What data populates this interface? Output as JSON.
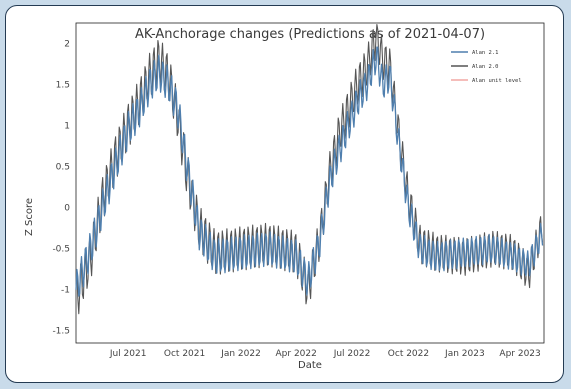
{
  "chart_data": {
    "type": "line",
    "title": "AK-Anchorage changes (Predictions as of 2021-04-07)",
    "xlabel": "Date",
    "ylabel": "Z Score",
    "x_ticks": [
      "Jul 2021",
      "Oct 2021",
      "Jan 2022",
      "Apr 2022",
      "Jul 2022",
      "Oct 2022",
      "Jan 2023",
      "Apr 2023"
    ],
    "y_ticks": [
      "-1.5",
      "-1",
      "-0.5",
      "0",
      "0.5",
      "1",
      "1.5",
      "2"
    ],
    "ylim": [
      -1.65,
      2.25
    ],
    "xlim": [
      "2021-04-07",
      "2023-05-10"
    ],
    "legend_position": "top-right",
    "grid": false,
    "series": [
      {
        "name": "Alan 2.1",
        "color": "#4f7fae",
        "x": [
          "2021-04-07",
          "2021-05-01",
          "2021-05-20",
          "2021-06-10",
          "2021-07-01",
          "2021-07-20",
          "2021-08-05",
          "2021-08-20",
          "2021-09-05",
          "2021-09-20",
          "2021-10-05",
          "2021-10-25",
          "2021-11-20",
          "2022-01-01",
          "2022-02-15",
          "2022-04-01",
          "2022-04-20",
          "2022-05-10",
          "2022-05-25",
          "2022-06-10",
          "2022-06-25",
          "2022-07-10",
          "2022-07-25",
          "2022-08-10",
          "2022-08-20",
          "2022-09-01",
          "2022-09-15",
          "2022-10-01",
          "2022-10-20",
          "2022-11-15",
          "2023-01-01",
          "2023-02-15",
          "2023-03-20",
          "2023-04-15",
          "2023-05-08"
        ],
        "values": [
          -1.0,
          -0.5,
          0.0,
          0.5,
          0.95,
          1.2,
          1.5,
          1.65,
          1.5,
          1.2,
          0.5,
          -0.3,
          -0.6,
          -0.55,
          -0.5,
          -0.6,
          -0.9,
          -0.4,
          0.3,
          0.7,
          1.0,
          1.3,
          1.5,
          1.85,
          1.5,
          1.6,
          0.8,
          0.0,
          -0.5,
          -0.6,
          -0.55,
          -0.5,
          -0.6,
          -0.7,
          -0.3
        ]
      },
      {
        "name": "Alan 2.0",
        "color": "#555555",
        "x": [
          "2021-04-07",
          "2021-05-01",
          "2021-05-20",
          "2021-06-10",
          "2021-07-01",
          "2021-07-20",
          "2021-08-05",
          "2021-08-20",
          "2021-09-05",
          "2021-09-20",
          "2021-10-05",
          "2021-10-25",
          "2021-11-20",
          "2022-01-01",
          "2022-02-15",
          "2022-04-01",
          "2022-04-20",
          "2022-05-10",
          "2022-05-25",
          "2022-06-10",
          "2022-06-25",
          "2022-07-10",
          "2022-07-25",
          "2022-08-10",
          "2022-08-20",
          "2022-09-01",
          "2022-09-15",
          "2022-10-01",
          "2022-10-20",
          "2022-11-15",
          "2023-01-01",
          "2023-02-15",
          "2023-03-20",
          "2023-04-15",
          "2023-05-08"
        ],
        "values": [
          -1.1,
          -0.6,
          0.1,
          0.6,
          1.0,
          1.3,
          1.6,
          1.8,
          1.6,
          1.1,
          0.4,
          -0.25,
          -0.55,
          -0.5,
          -0.45,
          -0.55,
          -1.0,
          -0.35,
          0.4,
          0.9,
          1.2,
          1.5,
          1.7,
          2.1,
          1.8,
          1.7,
          0.9,
          0.1,
          -0.45,
          -0.55,
          -0.6,
          -0.5,
          -0.55,
          -0.8,
          -0.2
        ]
      },
      {
        "name": "Alan unit level",
        "color": "#f2a7a3",
        "x": [],
        "values": []
      }
    ]
  }
}
